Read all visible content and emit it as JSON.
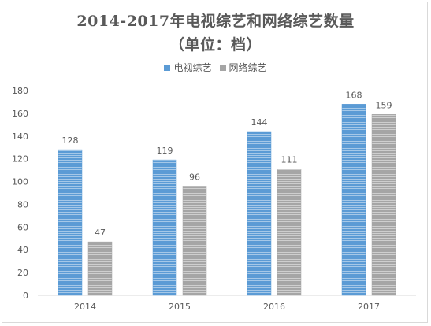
{
  "chart": {
    "title_line1": "2014-2017年电视综艺和网络综艺数量",
    "title_line2": "（单位：档）"
  },
  "colors": {
    "tv": "#5b9bd5",
    "online": "#a5a5a5",
    "axis": "#595959",
    "grid": "#d9d9d9"
  },
  "chart_data": {
    "type": "bar",
    "title": "2014-2017年电视综艺和网络综艺数量 （单位：档）",
    "categories": [
      "2014",
      "2015",
      "2016",
      "2017"
    ],
    "series": [
      {
        "name": "电视综艺",
        "values": [
          128,
          119,
          144,
          168
        ]
      },
      {
        "name": "网络综艺",
        "values": [
          47,
          96,
          111,
          159
        ]
      }
    ],
    "ylim": [
      0,
      180
    ],
    "yticks": [
      0,
      20,
      40,
      60,
      80,
      100,
      120,
      140,
      160,
      180
    ],
    "xlabel": "",
    "ylabel": "",
    "grid": false,
    "legend_position": "top-center",
    "data_labels": true
  }
}
